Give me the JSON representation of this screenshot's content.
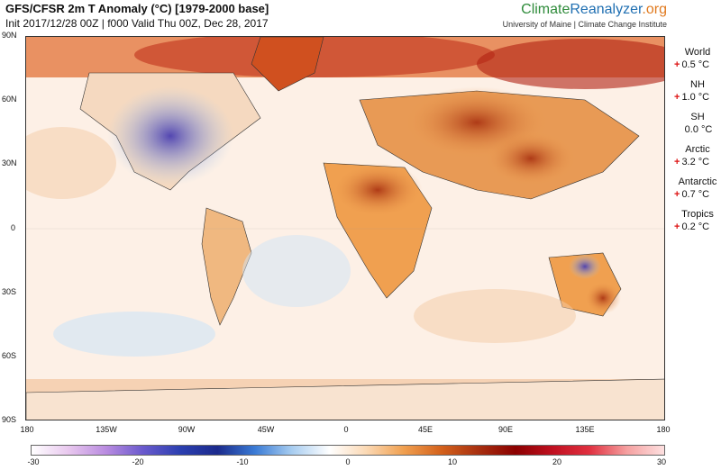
{
  "title": "GFS/CFSR 2m T Anomaly (°C) [1979-2000 base]",
  "subtitle": "Init 2017/12/28 00Z | f000 Valid Thu 00Z, Dec 28, 2017",
  "brand": {
    "part1": "Climate",
    "part2": "Reanalyzer",
    "part3": ".org",
    "sub": "University of Maine | Climate Change Institute"
  },
  "lat_ticks": [
    "90N",
    "60N",
    "30N",
    "0",
    "30S",
    "60S",
    "90S"
  ],
  "lon_ticks": [
    "180",
    "135W",
    "90W",
    "45W",
    "0",
    "45E",
    "90E",
    "135E",
    "180"
  ],
  "stats": [
    {
      "label": "World",
      "sign": "+",
      "value": "0.5 °C"
    },
    {
      "label": "NH",
      "sign": "+",
      "value": "1.0 °C"
    },
    {
      "label": "SH",
      "sign": "",
      "value": "0.0 °C"
    },
    {
      "label": "Arctic",
      "sign": "+",
      "value": "3.2 °C"
    },
    {
      "label": "Antarctic",
      "sign": "+",
      "value": "0.7 °C"
    },
    {
      "label": "Tropics",
      "sign": "+",
      "value": "0.2 °C"
    }
  ],
  "colorbar": {
    "ticks": [
      "-30",
      "-20",
      "-10",
      "0",
      "10",
      "20",
      "30"
    ],
    "colors": [
      "#ffffff",
      "#e8c7ee",
      "#b98be0",
      "#6a5acd",
      "#2b3fb0",
      "#1b2a8c",
      "#3a7bd5",
      "#a8cdf0",
      "#ffffff",
      "#fbd9b5",
      "#f0a050",
      "#d4621c",
      "#a83010",
      "#8b0000",
      "#c01020",
      "#e03040",
      "#f5a0a0",
      "#fde0e0"
    ]
  }
}
